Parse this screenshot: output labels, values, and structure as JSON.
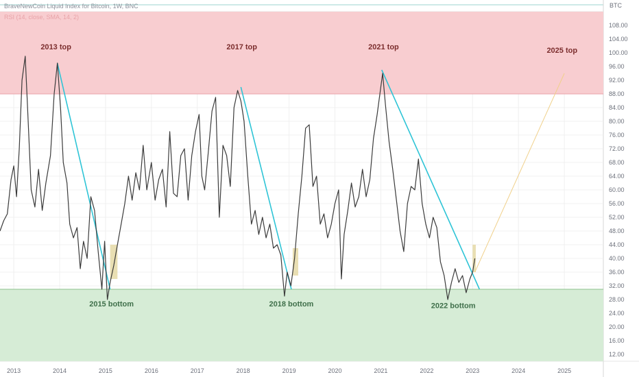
{
  "header": {
    "title": "BraveNewCoin Liquid Index for Bitcoin, 1W, BNC",
    "indicator": "RSI (14, close, SMA, 14, 2)",
    "scale_label": "BTC"
  },
  "colors": {
    "overbought_zone": "#f8cdd0",
    "oversold_zone": "#d6ecd6",
    "rsi_line": "#3a3a3a",
    "trend_line": "#2ec4d6",
    "marker_box": "#e5d9a6",
    "projection_line": "#f0d08a",
    "grid": "#f0f0f0",
    "top_text": "#7b2d2d",
    "bottom_text": "#3f6f4a"
  },
  "chart_data": {
    "type": "line",
    "y_range": [
      10,
      112
    ],
    "y_ticks": [
      "12.00",
      "16.00",
      "20.00",
      "24.00",
      "28.00",
      "32.00",
      "36.00",
      "40.00",
      "44.00",
      "48.00",
      "52.00",
      "56.00",
      "60.00",
      "64.00",
      "68.00",
      "72.00",
      "76.00",
      "80.00",
      "84.00",
      "88.00",
      "92.00",
      "96.00",
      "100.00",
      "104.00",
      "108.00"
    ],
    "x_range": [
      2012.7,
      2025.85
    ],
    "x_ticks": [
      "2013",
      "2014",
      "2015",
      "2016",
      "2017",
      "2018",
      "2019",
      "2020",
      "2021",
      "2022",
      "2023",
      "2024",
      "2025"
    ],
    "zones": {
      "overbought": [
        88,
        112
      ],
      "oversold": [
        10,
        31
      ]
    },
    "series": [
      {
        "values": [
          [
            2012.7,
            48
          ],
          [
            2012.78,
            51
          ],
          [
            2012.86,
            53
          ],
          [
            2012.94,
            63
          ],
          [
            2013.0,
            67
          ],
          [
            2013.06,
            58
          ],
          [
            2013.12,
            72
          ],
          [
            2013.18,
            92
          ],
          [
            2013.25,
            99
          ],
          [
            2013.3,
            84
          ],
          [
            2013.38,
            60
          ],
          [
            2013.46,
            55
          ],
          [
            2013.54,
            66
          ],
          [
            2013.62,
            54
          ],
          [
            2013.7,
            62
          ],
          [
            2013.8,
            70
          ],
          [
            2013.88,
            88
          ],
          [
            2013.95,
            97
          ],
          [
            2014.02,
            84
          ],
          [
            2014.08,
            68
          ],
          [
            2014.16,
            62
          ],
          [
            2014.22,
            50
          ],
          [
            2014.3,
            46
          ],
          [
            2014.38,
            49
          ],
          [
            2014.45,
            37
          ],
          [
            2014.52,
            45
          ],
          [
            2014.6,
            40
          ],
          [
            2014.68,
            58
          ],
          [
            2014.76,
            54
          ],
          [
            2014.84,
            42
          ],
          [
            2014.92,
            31
          ],
          [
            2014.98,
            45
          ],
          [
            2015.04,
            28
          ],
          [
            2015.1,
            33
          ],
          [
            2015.18,
            38
          ],
          [
            2015.26,
            44
          ],
          [
            2015.34,
            50
          ],
          [
            2015.42,
            56
          ],
          [
            2015.5,
            64
          ],
          [
            2015.58,
            57
          ],
          [
            2015.66,
            65
          ],
          [
            2015.74,
            60
          ],
          [
            2015.82,
            73
          ],
          [
            2015.9,
            60
          ],
          [
            2016.0,
            68
          ],
          [
            2016.08,
            57
          ],
          [
            2016.16,
            63
          ],
          [
            2016.24,
            66
          ],
          [
            2016.32,
            55
          ],
          [
            2016.4,
            77
          ],
          [
            2016.48,
            59
          ],
          [
            2016.56,
            58
          ],
          [
            2016.64,
            70
          ],
          [
            2016.72,
            72
          ],
          [
            2016.8,
            57
          ],
          [
            2016.88,
            70
          ],
          [
            2016.96,
            77
          ],
          [
            2017.04,
            82
          ],
          [
            2017.1,
            64
          ],
          [
            2017.16,
            60
          ],
          [
            2017.24,
            71
          ],
          [
            2017.32,
            83
          ],
          [
            2017.4,
            87
          ],
          [
            2017.48,
            52
          ],
          [
            2017.56,
            73
          ],
          [
            2017.64,
            70
          ],
          [
            2017.72,
            61
          ],
          [
            2017.8,
            84
          ],
          [
            2017.88,
            89
          ],
          [
            2017.95,
            86
          ],
          [
            2018.02,
            80
          ],
          [
            2018.1,
            64
          ],
          [
            2018.18,
            50
          ],
          [
            2018.26,
            54
          ],
          [
            2018.34,
            47
          ],
          [
            2018.42,
            52
          ],
          [
            2018.5,
            46
          ],
          [
            2018.58,
            50
          ],
          [
            2018.66,
            43
          ],
          [
            2018.74,
            44
          ],
          [
            2018.82,
            41
          ],
          [
            2018.9,
            29
          ],
          [
            2018.96,
            36
          ],
          [
            2019.04,
            32
          ],
          [
            2019.12,
            40
          ],
          [
            2019.2,
            53
          ],
          [
            2019.28,
            64
          ],
          [
            2019.36,
            78
          ],
          [
            2019.44,
            79
          ],
          [
            2019.52,
            61
          ],
          [
            2019.6,
            64
          ],
          [
            2019.68,
            50
          ],
          [
            2019.76,
            53
          ],
          [
            2019.84,
            46
          ],
          [
            2019.92,
            50
          ],
          [
            2020.0,
            56
          ],
          [
            2020.08,
            60
          ],
          [
            2020.14,
            34
          ],
          [
            2020.2,
            47
          ],
          [
            2020.28,
            54
          ],
          [
            2020.36,
            62
          ],
          [
            2020.44,
            55
          ],
          [
            2020.52,
            58
          ],
          [
            2020.6,
            66
          ],
          [
            2020.68,
            58
          ],
          [
            2020.76,
            63
          ],
          [
            2020.84,
            75
          ],
          [
            2020.92,
            82
          ],
          [
            2021.0,
            90
          ],
          [
            2021.04,
            94
          ],
          [
            2021.1,
            85
          ],
          [
            2021.18,
            74
          ],
          [
            2021.26,
            66
          ],
          [
            2021.34,
            57
          ],
          [
            2021.42,
            48
          ],
          [
            2021.5,
            42
          ],
          [
            2021.58,
            56
          ],
          [
            2021.66,
            61
          ],
          [
            2021.74,
            60
          ],
          [
            2021.82,
            69
          ],
          [
            2021.9,
            56
          ],
          [
            2021.98,
            50
          ],
          [
            2022.06,
            46
          ],
          [
            2022.14,
            52
          ],
          [
            2022.22,
            49
          ],
          [
            2022.3,
            39
          ],
          [
            2022.38,
            35
          ],
          [
            2022.46,
            28
          ],
          [
            2022.54,
            33
          ],
          [
            2022.62,
            37
          ],
          [
            2022.7,
            33
          ],
          [
            2022.78,
            35
          ],
          [
            2022.86,
            30
          ],
          [
            2022.94,
            34
          ],
          [
            2023.0,
            36
          ],
          [
            2023.05,
            40
          ]
        ]
      }
    ],
    "trend_lines": [
      [
        [
          2013.95,
          97
        ],
        [
          2015.1,
          31
        ]
      ],
      [
        [
          2017.95,
          90
        ],
        [
          2019.05,
          31
        ]
      ],
      [
        [
          2021.02,
          95
        ],
        [
          2023.15,
          31
        ]
      ]
    ],
    "projection_line": [
      [
        2023.05,
        36
      ],
      [
        2025.0,
        94
      ]
    ],
    "marker_boxes": [
      [
        2015.1,
        2015.26,
        34,
        44
      ],
      [
        2019.08,
        2019.2,
        35,
        43
      ],
      [
        2023.0,
        2023.07,
        36,
        44
      ]
    ],
    "annotations": {
      "tops": [
        {
          "label": "2013 top",
          "x": 2013.92,
          "y": 101
        },
        {
          "label": "2017 top",
          "x": 2017.97,
          "y": 101
        },
        {
          "label": "2021 top",
          "x": 2021.06,
          "y": 101
        },
        {
          "label": "2025 top",
          "x": 2024.95,
          "y": 100
        }
      ],
      "bottoms": [
        {
          "label": "2015 bottom",
          "x": 2015.13,
          "y": 26
        },
        {
          "label": "2018 bottom",
          "x": 2019.05,
          "y": 26
        },
        {
          "label": "2022 bottom",
          "x": 2022.58,
          "y": 25.5
        }
      ]
    }
  }
}
